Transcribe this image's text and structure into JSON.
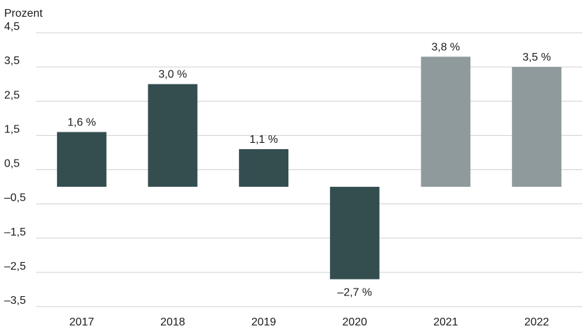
{
  "chart_data": {
    "type": "bar",
    "ylabel": "Prozent",
    "categories": [
      "2017",
      "2018",
      "2019",
      "2020",
      "2021",
      "2022"
    ],
    "values": [
      1.6,
      3.0,
      1.1,
      -2.7,
      3.8,
      3.5
    ],
    "data_labels": [
      "1,6 %",
      "3,0 %",
      "1,1 %",
      "–2,7 %",
      "3,8 %",
      "3,5 %"
    ],
    "y_ticks": [
      4.5,
      3.5,
      2.5,
      1.5,
      0.5,
      -0.5,
      -1.5,
      -2.5,
      -3.5
    ],
    "y_tick_labels": [
      "4,5",
      "3,5",
      "2,5",
      "1,5",
      "0,5",
      "–0,5",
      "–1,5",
      "–2,5",
      "–3,5"
    ],
    "ylim": [
      -3.5,
      4.5
    ],
    "grid": true,
    "colors": {
      "actual": "#344e50",
      "forecast": "#8e9a9c",
      "grid": "#cfcfcf",
      "text": "#1b1b1b"
    },
    "bar_colors": [
      "actual",
      "actual",
      "actual",
      "actual",
      "forecast",
      "forecast"
    ]
  }
}
